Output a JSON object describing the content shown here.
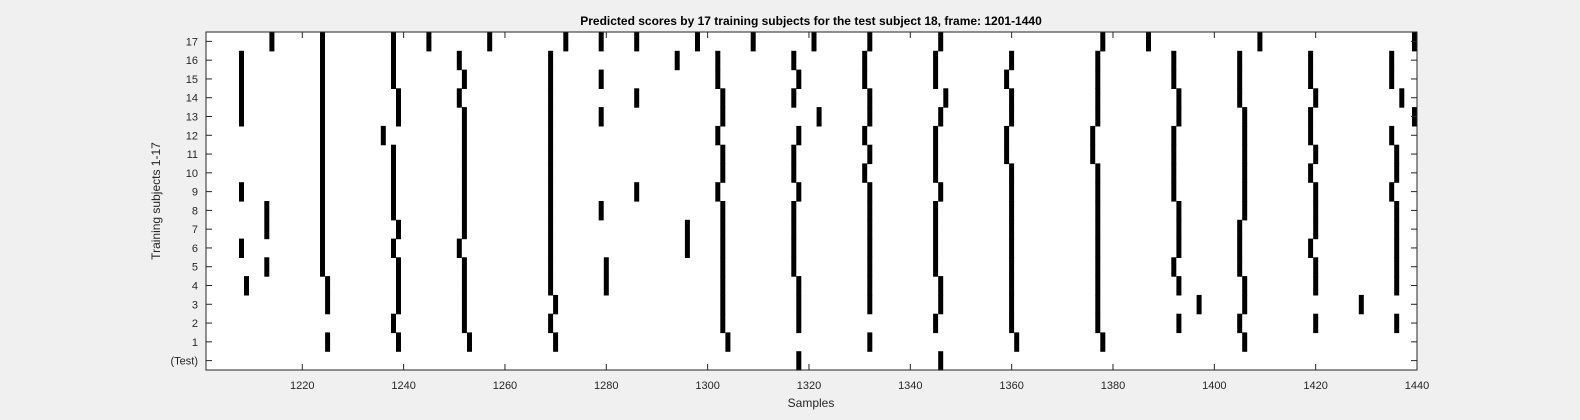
{
  "chart_data": {
    "type": "raster",
    "title": "Predicted scores by 17 training subjects for the test subject 18, frame: 1201-1440",
    "xlabel": "Samples",
    "ylabel": "Training subjects 1-17",
    "xlim": [
      1201,
      1440
    ],
    "xticks": [
      1220,
      1240,
      1260,
      1280,
      1300,
      1320,
      1340,
      1360,
      1380,
      1400,
      1420,
      1440
    ],
    "yticks": [
      "(Test)",
      "1",
      "2",
      "3",
      "4",
      "5",
      "6",
      "7",
      "8",
      "9",
      "10",
      "11",
      "12",
      "13",
      "14",
      "15",
      "16",
      "17"
    ],
    "colors": {
      "event": "#000000",
      "background": "#ffffff",
      "figure": "#f0f0f0"
    },
    "rows": [
      {
        "label": "(Test)",
        "events": [
          1318,
          1346
        ]
      },
      {
        "label": "1",
        "events": [
          1225,
          1239,
          1253,
          1270,
          1304,
          1332,
          1361,
          1378,
          1406
        ]
      },
      {
        "label": "2",
        "events": [
          1238,
          1252,
          1269,
          1303,
          1318,
          1345,
          1360,
          1377,
          1393,
          1405,
          1420,
          1436
        ]
      },
      {
        "label": "3",
        "events": [
          1225,
          1239,
          1252,
          1270,
          1303,
          1318,
          1332,
          1346,
          1360,
          1377,
          1397,
          1406,
          1429
        ]
      },
      {
        "label": "4",
        "events": [
          1209,
          1225,
          1239,
          1252,
          1269,
          1280,
          1303,
          1318,
          1332,
          1346,
          1360,
          1377,
          1393,
          1406,
          1420,
          1436
        ]
      },
      {
        "label": "5",
        "events": [
          1213,
          1224,
          1239,
          1252,
          1269,
          1280,
          1303,
          1317,
          1332,
          1345,
          1360,
          1377,
          1392,
          1405,
          1420,
          1436
        ]
      },
      {
        "label": "6",
        "events": [
          1208,
          1224,
          1238,
          1251,
          1269,
          1296,
          1303,
          1317,
          1332,
          1345,
          1360,
          1377,
          1393,
          1405,
          1419,
          1436
        ]
      },
      {
        "label": "7",
        "events": [
          1213,
          1224,
          1239,
          1252,
          1269,
          1296,
          1303,
          1317,
          1332,
          1345,
          1360,
          1377,
          1393,
          1405,
          1420,
          1436
        ]
      },
      {
        "label": "8",
        "events": [
          1213,
          1224,
          1238,
          1252,
          1269,
          1279,
          1303,
          1317,
          1332,
          1345,
          1360,
          1377,
          1393,
          1406,
          1420,
          1436
        ]
      },
      {
        "label": "9",
        "events": [
          1208,
          1224,
          1238,
          1252,
          1269,
          1286,
          1302,
          1318,
          1332,
          1346,
          1360,
          1377,
          1392,
          1406,
          1420,
          1435
        ]
      },
      {
        "label": "10",
        "events": [
          1224,
          1238,
          1252,
          1269,
          1303,
          1317,
          1331,
          1345,
          1360,
          1377,
          1392,
          1406,
          1419,
          1436
        ]
      },
      {
        "label": "11",
        "events": [
          1224,
          1238,
          1252,
          1269,
          1303,
          1317,
          1332,
          1345,
          1359,
          1376,
          1392,
          1406,
          1420,
          1436
        ]
      },
      {
        "label": "12",
        "events": [
          1224,
          1236,
          1252,
          1269,
          1302,
          1318,
          1331,
          1345,
          1359,
          1376,
          1392,
          1406,
          1419,
          1435
        ]
      },
      {
        "label": "13",
        "events": [
          1208,
          1224,
          1239,
          1252,
          1269,
          1279,
          1303,
          1322,
          1332,
          1346,
          1360,
          1377,
          1393,
          1406,
          1419,
          1440
        ]
      },
      {
        "label": "14",
        "events": [
          1208,
          1224,
          1239,
          1251,
          1269,
          1286,
          1303,
          1317,
          1332,
          1347,
          1360,
          1377,
          1393,
          1405,
          1420,
          1437
        ]
      },
      {
        "label": "15",
        "events": [
          1208,
          1224,
          1238,
          1252,
          1269,
          1279,
          1302,
          1318,
          1331,
          1345,
          1359,
          1377,
          1392,
          1405,
          1419,
          1435
        ]
      },
      {
        "label": "16",
        "events": [
          1208,
          1224,
          1238,
          1251,
          1269,
          1294,
          1302,
          1317,
          1331,
          1345,
          1360,
          1377,
          1392,
          1405,
          1419,
          1435
        ]
      },
      {
        "label": "17",
        "events": [
          1214,
          1224,
          1238,
          1245,
          1257,
          1272,
          1279,
          1286,
          1298,
          1309,
          1321,
          1332,
          1346,
          1378,
          1387,
          1409,
          1440
        ]
      }
    ]
  }
}
